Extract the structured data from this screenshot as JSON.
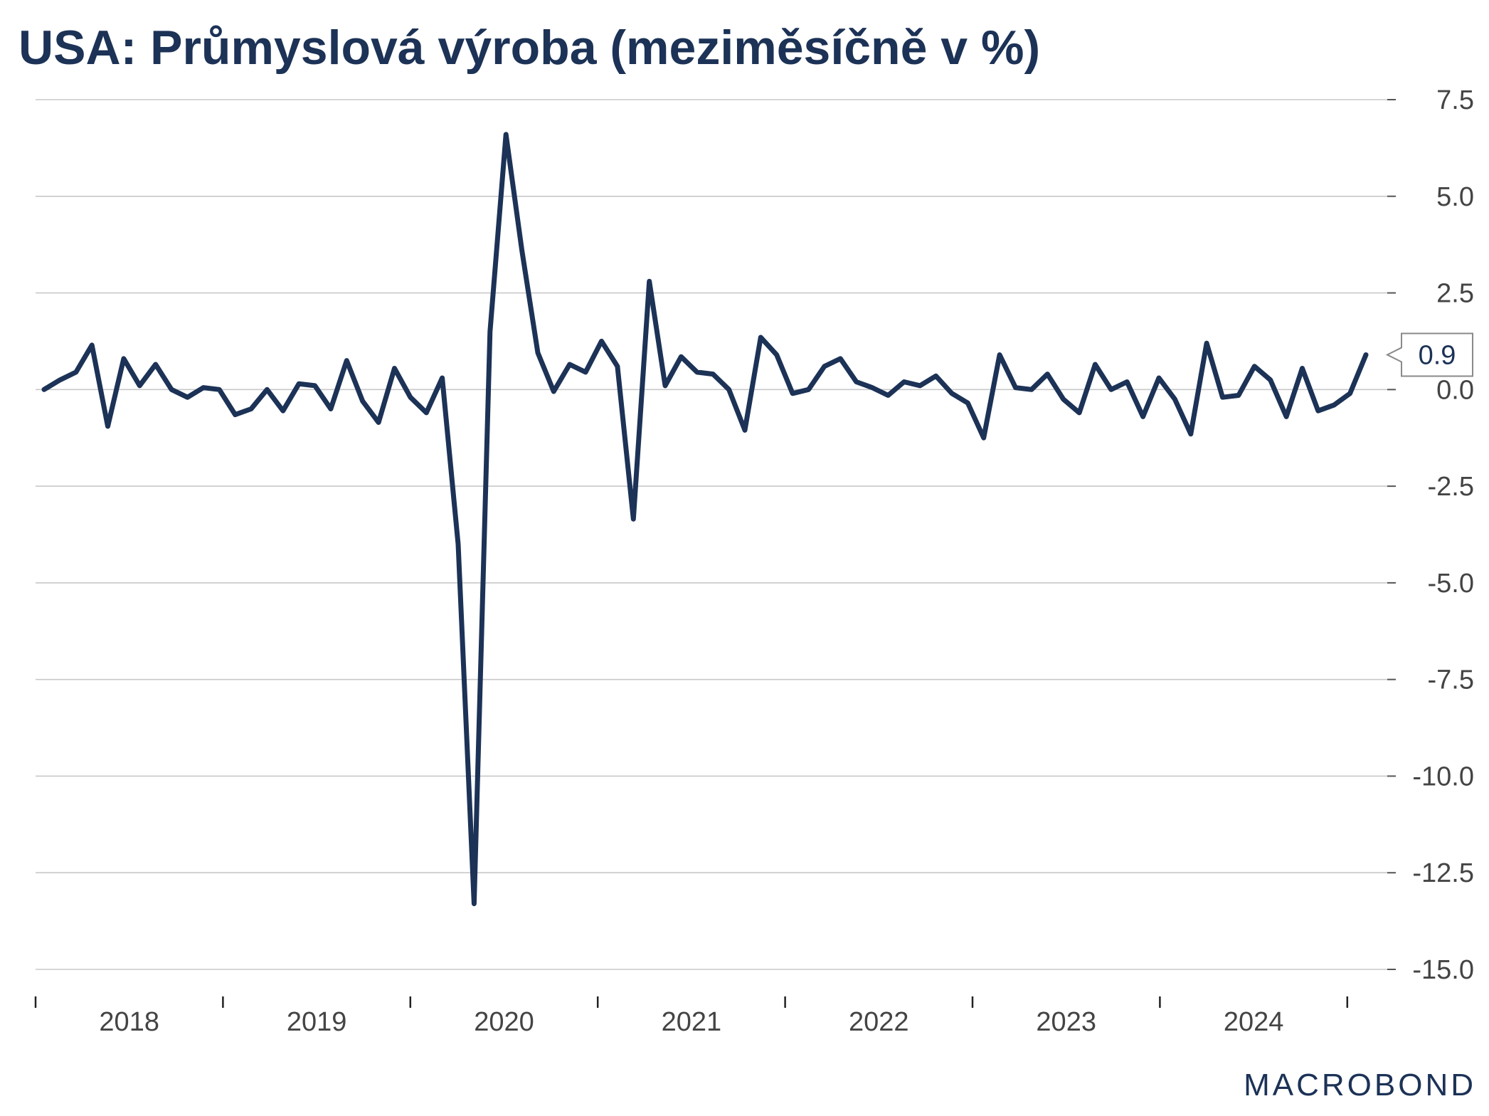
{
  "title": "USA: Průmyslová výroba (meziměsíčně v %)",
  "logo": "MACROBOND",
  "colors": {
    "line": "#1c3256",
    "grid": "#c8c8c8",
    "text": "#444444"
  },
  "chart_data": {
    "type": "line",
    "title": "USA: Průmyslová výroba (meziměsíčně v %)",
    "xlabel": "",
    "ylabel": "",
    "ylim": [
      -15,
      7.5
    ],
    "y_ticks": [
      7.5,
      5.0,
      2.5,
      0.0,
      -2.5,
      -5.0,
      -7.5,
      -10.0,
      -12.5,
      -15.0
    ],
    "y_tick_labels": [
      "7.5",
      "5.0",
      "2.5",
      "0.0",
      "-2.5",
      "-5.0",
      "-7.5",
      "-10.0",
      "-12.5",
      "-15.0"
    ],
    "y_axis_position": "right",
    "x_tick_labels": [
      "2018",
      "2019",
      "2020",
      "2021",
      "2022",
      "2023",
      "2024"
    ],
    "grid": true,
    "legend": false,
    "last_value_label": "0.9",
    "series": [
      {
        "x": [
          "2018-01",
          "2018-02",
          "2018-03",
          "2018-04",
          "2018-05",
          "2018-06",
          "2018-07",
          "2018-08",
          "2018-09",
          "2018-10",
          "2018-11",
          "2018-12",
          "2019-01",
          "2019-02",
          "2019-03",
          "2019-04",
          "2019-05",
          "2019-06",
          "2019-07",
          "2019-08",
          "2019-09",
          "2019-10",
          "2019-11",
          "2019-12",
          "2020-01",
          "2020-02",
          "2020-03",
          "2020-04",
          "2020-05",
          "2020-06",
          "2020-07",
          "2020-08",
          "2020-09",
          "2020-10",
          "2020-11",
          "2020-12",
          "2021-01",
          "2021-02",
          "2021-03",
          "2021-04",
          "2021-05",
          "2021-06",
          "2021-07",
          "2021-08",
          "2021-09",
          "2021-10",
          "2021-11",
          "2021-12",
          "2022-01",
          "2022-02",
          "2022-03",
          "2022-04",
          "2022-05",
          "2022-06",
          "2022-07",
          "2022-08",
          "2022-09",
          "2022-10",
          "2022-11",
          "2022-12",
          "2023-01",
          "2023-02",
          "2023-03",
          "2023-04",
          "2023-05",
          "2023-06",
          "2023-07",
          "2023-08",
          "2023-09",
          "2023-10",
          "2023-11",
          "2023-12",
          "2024-01",
          "2024-02",
          "2024-03",
          "2024-04",
          "2024-05",
          "2024-06",
          "2024-07",
          "2024-08",
          "2024-09",
          "2024-10",
          "2024-11",
          "2024-12"
        ],
        "values": [
          0.0,
          0.25,
          0.45,
          1.15,
          -0.95,
          0.8,
          0.1,
          0.65,
          0.0,
          -0.2,
          0.05,
          0.0,
          -0.65,
          -0.5,
          0.0,
          -0.55,
          0.15,
          0.1,
          -0.5,
          0.75,
          -0.3,
          -0.85,
          0.55,
          -0.2,
          -0.6,
          0.3,
          -4.0,
          -13.3,
          1.5,
          6.6,
          3.6,
          0.95,
          -0.05,
          0.65,
          0.45,
          1.25,
          0.6,
          -3.35,
          2.8,
          0.1,
          0.85,
          0.45,
          0.4,
          0.0,
          -1.05,
          1.35,
          0.9,
          -0.1,
          0.0,
          0.6,
          0.8,
          0.2,
          0.05,
          -0.15,
          0.2,
          0.1,
          0.35,
          -0.1,
          -0.35,
          -1.25,
          0.9,
          0.05,
          0.0,
          0.4,
          -0.25,
          -0.6,
          0.65,
          0.0,
          0.2,
          -0.7,
          0.3,
          -0.25,
          -1.15,
          1.2,
          -0.2,
          -0.15,
          0.6,
          0.25,
          -0.7,
          0.55,
          -0.55,
          -0.4,
          -0.1,
          0.9
        ]
      }
    ]
  }
}
